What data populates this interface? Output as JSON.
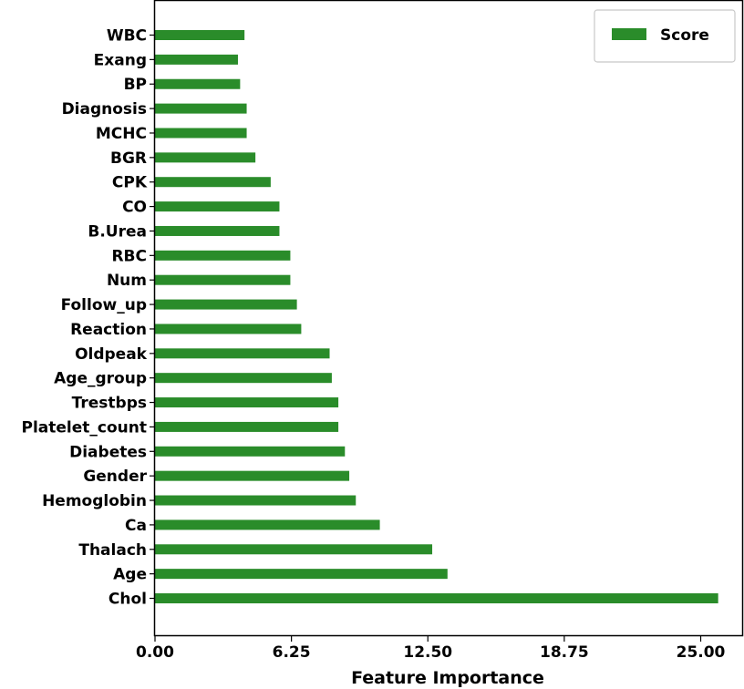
{
  "chart_data": {
    "type": "bar",
    "orientation": "horizontal",
    "categories": [
      "WBC",
      "Exang",
      "BP",
      "Diagnosis",
      "MCHC",
      "BGR",
      "CPK",
      "CO",
      "B.Urea",
      "RBC",
      "Num",
      "Follow_up",
      "Reaction",
      "Oldpeak",
      "Age_group",
      "Trestbps",
      "Platelet_count",
      "Diabetes",
      "Gender",
      "Hemoglobin",
      "Ca",
      "Thalach",
      "Age",
      "Chol"
    ],
    "series": [
      {
        "name": "Score",
        "color": "#2a8c2a",
        "values": [
          4.1,
          3.8,
          3.9,
          4.2,
          4.2,
          4.6,
          5.3,
          5.7,
          5.7,
          6.2,
          6.2,
          6.5,
          6.7,
          8.0,
          8.1,
          8.4,
          8.4,
          8.7,
          8.9,
          9.2,
          10.3,
          12.7,
          13.4,
          25.8
        ]
      }
    ],
    "xlabel": "Feature Importance",
    "ylabel": "",
    "xlim": [
      0,
      26.9
    ],
    "xticks": [
      0,
      6.25,
      12.5,
      18.75,
      25.0
    ],
    "xtick_labels": [
      "0.00",
      "6.25",
      "12.50",
      "18.75",
      "25.00"
    ],
    "grid": false,
    "legend_position": "top-right"
  }
}
